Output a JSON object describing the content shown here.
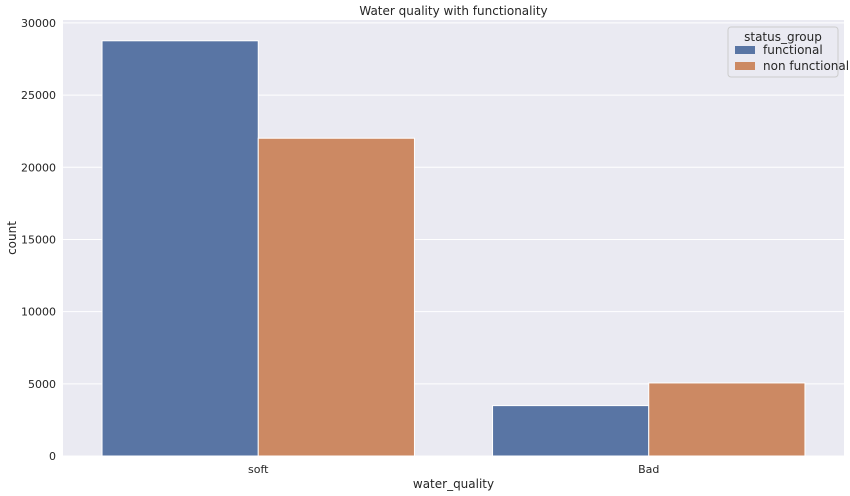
{
  "chart_data": {
    "type": "bar",
    "title": "Water quality with functionality",
    "xlabel": "water_quality",
    "ylabel": "count",
    "categories": [
      "soft",
      "Bad"
    ],
    "series": [
      {
        "name": "functional",
        "values": [
          28760,
          3490
        ],
        "color": "#5975a4"
      },
      {
        "name": "non functional",
        "values": [
          22010,
          5060
        ],
        "color": "#cc8963"
      }
    ],
    "yticks": [
      0,
      5000,
      10000,
      15000,
      20000,
      25000,
      30000
    ],
    "ylim": [
      0,
      30200
    ],
    "legend": {
      "title": "status_group",
      "placement": "top-right"
    },
    "background": "#eaeaf2",
    "grid": true
  }
}
